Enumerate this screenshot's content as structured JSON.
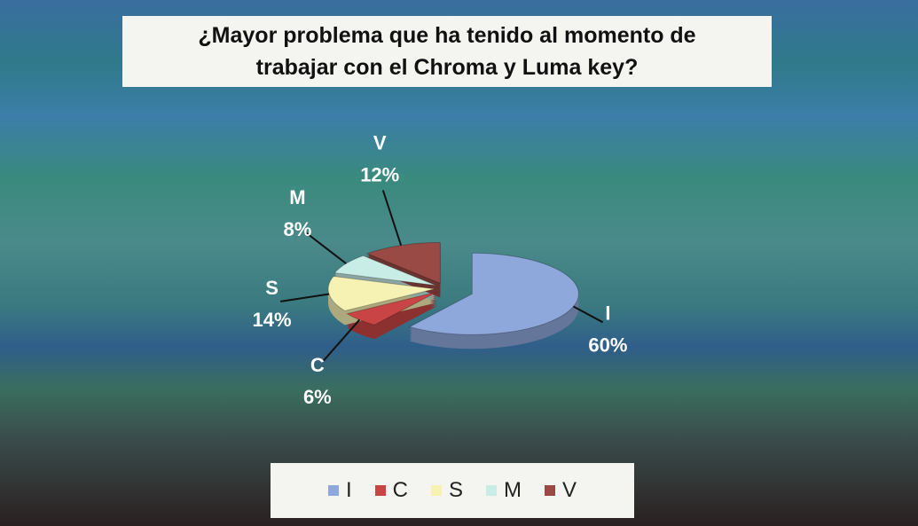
{
  "chart_data": {
    "type": "pie",
    "title": "¿Mayor problema que ha tenido al momento de trabajar con el Chroma y Luma key?",
    "categories": [
      "I",
      "C",
      "S",
      "M",
      "V"
    ],
    "values": [
      60,
      6,
      14,
      8,
      12
    ],
    "value_labels": [
      "60%",
      "6%",
      "14%",
      "8%",
      "12%"
    ],
    "colors": [
      "#8fa8dc",
      "#c94444",
      "#f6f2b4",
      "#c8ece6",
      "#9a4a44"
    ],
    "legend": "bottom"
  }
}
